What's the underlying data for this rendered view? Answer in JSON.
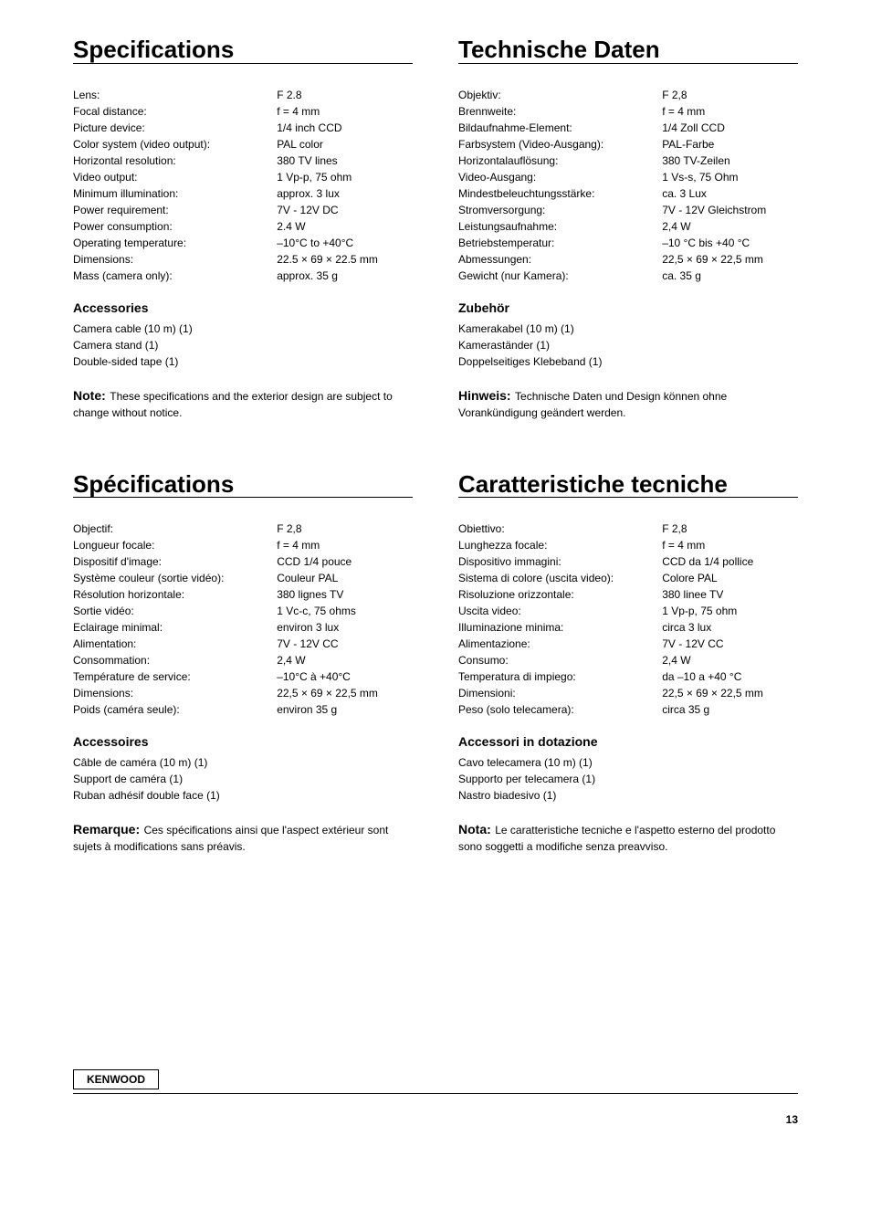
{
  "english": {
    "title": "Specifications",
    "specs": [
      {
        "label": "Lens:",
        "value": "F 2.8"
      },
      {
        "label": "Focal distance:",
        "value": "f = 4 mm"
      },
      {
        "label": "Picture device:",
        "value": "1/4 inch CCD"
      },
      {
        "label": "Color system (video output):",
        "value": "PAL color"
      },
      {
        "label": "Horizontal resolution:",
        "value": "380 TV lines"
      },
      {
        "label": "Video output:",
        "value": "1 Vp-p, 75 ohm"
      },
      {
        "label": "Minimum illumination:",
        "value": "approx. 3 lux"
      },
      {
        "label": "Power requirement:",
        "value": "7V - 12V DC"
      },
      {
        "label": "Power consumption:",
        "value": "2.4 W"
      },
      {
        "label": "Operating temperature:",
        "value": "–10°C to +40°C"
      },
      {
        "label": "Dimensions:",
        "value": "22.5 × 69 × 22.5 mm"
      },
      {
        "label": "Mass (camera only):",
        "value": "approx. 35 g"
      }
    ],
    "accessories_title": "Accessories",
    "accessories": [
      "Camera cable (10 m) (1)",
      "Camera stand (1)",
      "Double-sided tape (1)"
    ],
    "note_label": "Note:",
    "note_text": "These specifications and the exterior design are subject to change without notice."
  },
  "german": {
    "title": "Technische Daten",
    "specs": [
      {
        "label": "Objektiv:",
        "value": "F 2,8"
      },
      {
        "label": "Brennweite:",
        "value": "f = 4 mm"
      },
      {
        "label": "Bildaufnahme-Element:",
        "value": "1/4 Zoll CCD"
      },
      {
        "label": "Farbsystem (Video-Ausgang):",
        "value": "PAL-Farbe"
      },
      {
        "label": "Horizontalauflösung:",
        "value": "380 TV-Zeilen"
      },
      {
        "label": "Video-Ausgang:",
        "value": "1 Vs-s, 75 Ohm"
      },
      {
        "label": "Mindestbeleuchtungsstärke:",
        "value": "ca. 3 Lux"
      },
      {
        "label": "Stromversorgung:",
        "value": "7V - 12V Gleichstrom"
      },
      {
        "label": "Leistungsaufnahme:",
        "value": "2,4 W"
      },
      {
        "label": "Betriebstemperatur:",
        "value": "–10 °C bis +40 °C"
      },
      {
        "label": "Abmessungen:",
        "value": "22,5 × 69 × 22,5 mm"
      },
      {
        "label": "Gewicht (nur Kamera):",
        "value": "ca. 35 g"
      }
    ],
    "accessories_title": "Zubehör",
    "accessories": [
      "Kamerakabel (10 m) (1)",
      "Kameraständer (1)",
      "Doppelseitiges Klebeband (1)"
    ],
    "note_label": "Hinweis:",
    "note_text": "Technische Daten und Design können ohne Vorankündigung geändert werden."
  },
  "french": {
    "title": "Spécifications",
    "specs": [
      {
        "label": "Objectif:",
        "value": "F 2,8"
      },
      {
        "label": "Longueur focale:",
        "value": "f = 4 mm"
      },
      {
        "label": "Dispositif d'image:",
        "value": "CCD 1/4 pouce"
      },
      {
        "label": "Système couleur (sortie vidéo):",
        "value": "Couleur PAL"
      },
      {
        "label": "Résolution horizontale:",
        "value": "380 lignes TV"
      },
      {
        "label": "Sortie vidéo:",
        "value": "1 Vc-c, 75 ohms"
      },
      {
        "label": "Eclairage minimal:",
        "value": "environ 3 lux"
      },
      {
        "label": "Alimentation:",
        "value": "7V - 12V CC"
      },
      {
        "label": "Consommation:",
        "value": "2,4 W"
      },
      {
        "label": "Température de service:",
        "value": "–10°C à +40°C"
      },
      {
        "label": "Dimensions:",
        "value": "22,5 × 69 × 22,5 mm"
      },
      {
        "label": "Poids (caméra seule):",
        "value": "environ 35 g"
      }
    ],
    "accessories_title": "Accessoires",
    "accessories": [
      "Câble de caméra (10 m) (1)",
      "Support de caméra (1)",
      "Ruban adhésif double face (1)"
    ],
    "note_label": "Remarque:",
    "note_text": "Ces spécifications ainsi que l'aspect extérieur sont sujets à modifications sans préavis."
  },
  "italian": {
    "title": "Caratteristiche tecniche",
    "specs": [
      {
        "label": "Obiettivo:",
        "value": "F 2,8"
      },
      {
        "label": "Lunghezza focale:",
        "value": "f = 4 mm"
      },
      {
        "label": "Dispositivo immagini:",
        "value": "CCD da 1/4 pollice"
      },
      {
        "label": "Sistema di colore (uscita video):",
        "value": "Colore PAL"
      },
      {
        "label": "Risoluzione orizzontale:",
        "value": "380 linee TV"
      },
      {
        "label": "Uscita video:",
        "value": "1 Vp-p, 75 ohm"
      },
      {
        "label": "Illuminazione minima:",
        "value": "circa 3 lux"
      },
      {
        "label": "Alimentazione:",
        "value": "7V - 12V CC"
      },
      {
        "label": "Consumo:",
        "value": "2,4 W"
      },
      {
        "label": "Temperatura di impiego:",
        "value": "da –10 a +40 °C"
      },
      {
        "label": "Dimensioni:",
        "value": "22,5 × 69 × 22,5 mm"
      },
      {
        "label": "Peso (solo telecamera):",
        "value": "circa 35 g"
      }
    ],
    "accessories_title": "Accessori in dotazione",
    "accessories": [
      "Cavo telecamera (10 m) (1)",
      "Supporto per telecamera (1)",
      "Nastro biadesivo (1)"
    ],
    "note_label": "Nota:",
    "note_text": "Le caratteristiche tecniche e l'aspetto esterno del prodotto sono soggetti a modifiche senza preavviso."
  },
  "footer": {
    "brand": "KENWOOD",
    "page": "13"
  }
}
